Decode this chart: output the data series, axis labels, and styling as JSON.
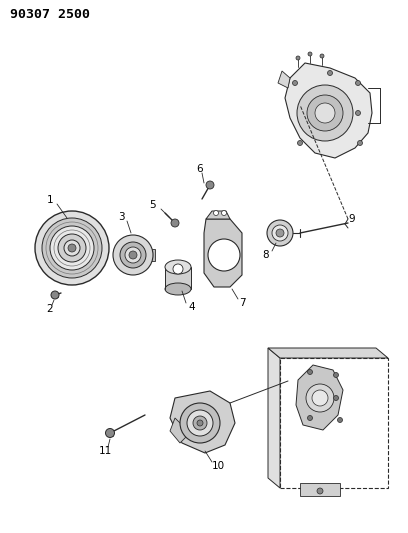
{
  "title": "90307 2500",
  "bg_color": "#ffffff",
  "fig_width": 4.08,
  "fig_height": 5.33,
  "dpi": 100,
  "line_color": "#2a2a2a",
  "label_color": "#000000"
}
